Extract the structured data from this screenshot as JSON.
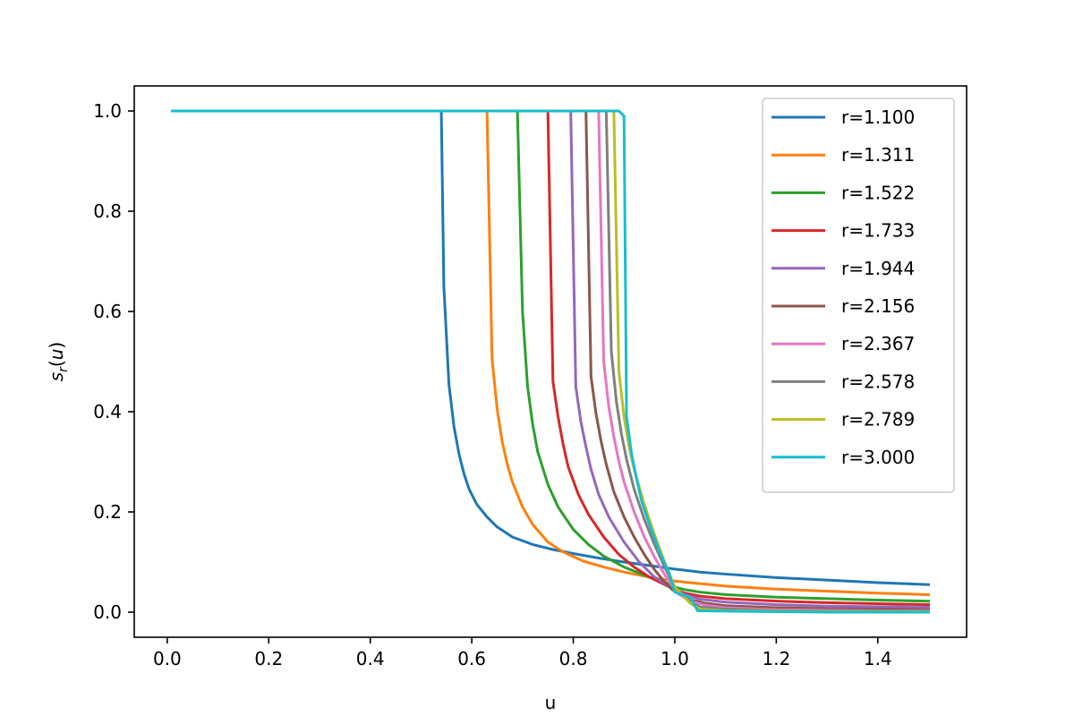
{
  "chart_data": {
    "type": "line",
    "title": "",
    "xlabel": "u",
    "ylabel_base": "s",
    "ylabel_sub": "r",
    "ylabel_arg": "(u)",
    "xlim": [
      -0.065,
      1.575
    ],
    "ylim": [
      -0.05,
      1.05
    ],
    "xticks": [
      0.0,
      0.2,
      0.4,
      0.6,
      0.8,
      1.0,
      1.2,
      1.4
    ],
    "xtick_labels": [
      "0.0",
      "0.2",
      "0.4",
      "0.6",
      "0.8",
      "1.0",
      "1.2",
      "1.4"
    ],
    "yticks": [
      0.0,
      0.2,
      0.4,
      0.6,
      0.8,
      1.0
    ],
    "ytick_labels": [
      "0.0",
      "0.2",
      "0.4",
      "0.6",
      "0.8",
      "1.0"
    ],
    "grid": false,
    "legend_position": "top-right",
    "series": [
      {
        "name": "r=1.100",
        "color": "#1f77b4",
        "x": [
          0.01,
          0.54,
          0.545,
          0.555,
          0.565,
          0.575,
          0.585,
          0.595,
          0.61,
          0.63,
          0.65,
          0.68,
          0.72,
          0.76,
          0.8,
          0.85,
          0.9,
          0.95,
          1.0,
          1.05,
          1.1,
          1.2,
          1.3,
          1.4,
          1.5
        ],
        "y": [
          1.0,
          1.0,
          0.65,
          0.455,
          0.37,
          0.315,
          0.275,
          0.245,
          0.215,
          0.19,
          0.17,
          0.15,
          0.135,
          0.125,
          0.117,
          0.108,
          0.1,
          0.093,
          0.086,
          0.08,
          0.076,
          0.069,
          0.064,
          0.059,
          0.055
        ]
      },
      {
        "name": "r=1.311",
        "color": "#ff7f0e",
        "x": [
          0.01,
          0.63,
          0.64,
          0.65,
          0.66,
          0.67,
          0.68,
          0.7,
          0.72,
          0.75,
          0.78,
          0.82,
          0.86,
          0.9,
          0.95,
          1.0,
          1.05,
          1.1,
          1.2,
          1.3,
          1.4,
          1.5
        ],
        "y": [
          1.0,
          1.0,
          0.505,
          0.405,
          0.34,
          0.295,
          0.26,
          0.21,
          0.175,
          0.14,
          0.12,
          0.102,
          0.09,
          0.08,
          0.07,
          0.062,
          0.057,
          0.052,
          0.046,
          0.042,
          0.038,
          0.035
        ]
      },
      {
        "name": "r=1.522",
        "color": "#2ca02c",
        "x": [
          0.01,
          0.69,
          0.7,
          0.71,
          0.72,
          0.73,
          0.75,
          0.77,
          0.8,
          0.83,
          0.86,
          0.9,
          0.95,
          0.98,
          1.0,
          1.02,
          1.05,
          1.1,
          1.2,
          1.3,
          1.4,
          1.5
        ],
        "y": [
          1.0,
          1.0,
          0.6,
          0.45,
          0.375,
          0.32,
          0.255,
          0.21,
          0.165,
          0.135,
          0.112,
          0.09,
          0.07,
          0.06,
          0.05,
          0.045,
          0.04,
          0.035,
          0.03,
          0.027,
          0.024,
          0.022
        ]
      },
      {
        "name": "r=1.733",
        "color": "#d62728",
        "x": [
          0.01,
          0.75,
          0.76,
          0.77,
          0.78,
          0.79,
          0.81,
          0.83,
          0.86,
          0.89,
          0.92,
          0.95,
          0.98,
          1.0,
          1.02,
          1.05,
          1.1,
          1.2,
          1.3,
          1.4,
          1.5
        ],
        "y": [
          1.0,
          1.0,
          0.46,
          0.39,
          0.335,
          0.29,
          0.235,
          0.195,
          0.15,
          0.115,
          0.09,
          0.07,
          0.055,
          0.045,
          0.038,
          0.032,
          0.027,
          0.022,
          0.019,
          0.017,
          0.015
        ]
      },
      {
        "name": "r=1.944",
        "color": "#9467bd",
        "x": [
          0.01,
          0.795,
          0.805,
          0.815,
          0.825,
          0.835,
          0.85,
          0.87,
          0.9,
          0.93,
          0.96,
          0.99,
          1.0,
          1.02,
          1.05,
          1.1,
          1.2,
          1.3,
          1.4,
          1.5
        ],
        "y": [
          1.0,
          1.0,
          0.45,
          0.38,
          0.33,
          0.285,
          0.235,
          0.19,
          0.14,
          0.1,
          0.07,
          0.05,
          0.045,
          0.035,
          0.026,
          0.02,
          0.015,
          0.012,
          0.011,
          0.01
        ]
      },
      {
        "name": "r=2.156",
        "color": "#8c564b",
        "x": [
          0.01,
          0.825,
          0.835,
          0.845,
          0.855,
          0.865,
          0.88,
          0.9,
          0.92,
          0.94,
          0.96,
          0.98,
          0.995,
          1.01,
          1.03,
          1.06,
          1.1,
          1.2,
          1.3,
          1.4,
          1.5
        ],
        "y": [
          1.0,
          1.0,
          0.47,
          0.395,
          0.34,
          0.295,
          0.24,
          0.19,
          0.15,
          0.115,
          0.085,
          0.06,
          0.045,
          0.035,
          0.025,
          0.018,
          0.013,
          0.009,
          0.007,
          0.006,
          0.005
        ]
      },
      {
        "name": "r=2.367",
        "color": "#e377c2",
        "x": [
          0.01,
          0.85,
          0.86,
          0.87,
          0.88,
          0.89,
          0.9,
          0.92,
          0.94,
          0.96,
          0.98,
          1.0,
          1.01,
          1.03,
          1.06,
          1.1,
          1.2,
          1.3,
          1.4,
          1.5
        ],
        "y": [
          1.0,
          1.0,
          0.5,
          0.41,
          0.35,
          0.3,
          0.26,
          0.2,
          0.15,
          0.11,
          0.075,
          0.045,
          0.035,
          0.022,
          0.014,
          0.009,
          0.005,
          0.004,
          0.003,
          0.003
        ]
      },
      {
        "name": "r=2.578",
        "color": "#7f7f7f",
        "x": [
          0.01,
          0.865,
          0.875,
          0.885,
          0.895,
          0.905,
          0.92,
          0.94,
          0.96,
          0.98,
          1.0,
          1.01,
          1.03,
          1.05,
          1.1,
          1.2,
          1.3,
          1.4,
          1.5
        ],
        "y": [
          1.0,
          1.0,
          0.52,
          0.42,
          0.355,
          0.305,
          0.245,
          0.185,
          0.135,
          0.09,
          0.05,
          0.04,
          0.02,
          0.01,
          0.006,
          0.003,
          0.002,
          0.002,
          0.002
        ]
      },
      {
        "name": "r=2.789",
        "color": "#bcbd22",
        "x": [
          0.01,
          0.88,
          0.89,
          0.9,
          0.91,
          0.92,
          0.94,
          0.96,
          0.98,
          1.0,
          1.01,
          1.03,
          1.05,
          1.1,
          1.2,
          1.3,
          1.4,
          1.5
        ],
        "y": [
          1.0,
          1.0,
          0.48,
          0.39,
          0.33,
          0.285,
          0.215,
          0.155,
          0.1,
          0.05,
          0.04,
          0.018,
          0.006,
          0.003,
          0.002,
          0.001,
          0.001,
          0.001
        ]
      },
      {
        "name": "r=3.000",
        "color": "#17becf",
        "x": [
          0.01,
          0.89,
          0.9,
          0.905,
          0.915,
          0.925,
          0.935,
          0.95,
          0.97,
          0.99,
          1.0,
          1.03,
          1.045,
          1.1,
          1.2,
          1.3,
          1.4,
          1.5
        ],
        "y": [
          1.0,
          1.0,
          0.99,
          0.39,
          0.315,
          0.265,
          0.22,
          0.175,
          0.12,
          0.075,
          0.04,
          0.03,
          0.003,
          0.002,
          0.001,
          0.0,
          0.0,
          0.0
        ]
      }
    ]
  }
}
